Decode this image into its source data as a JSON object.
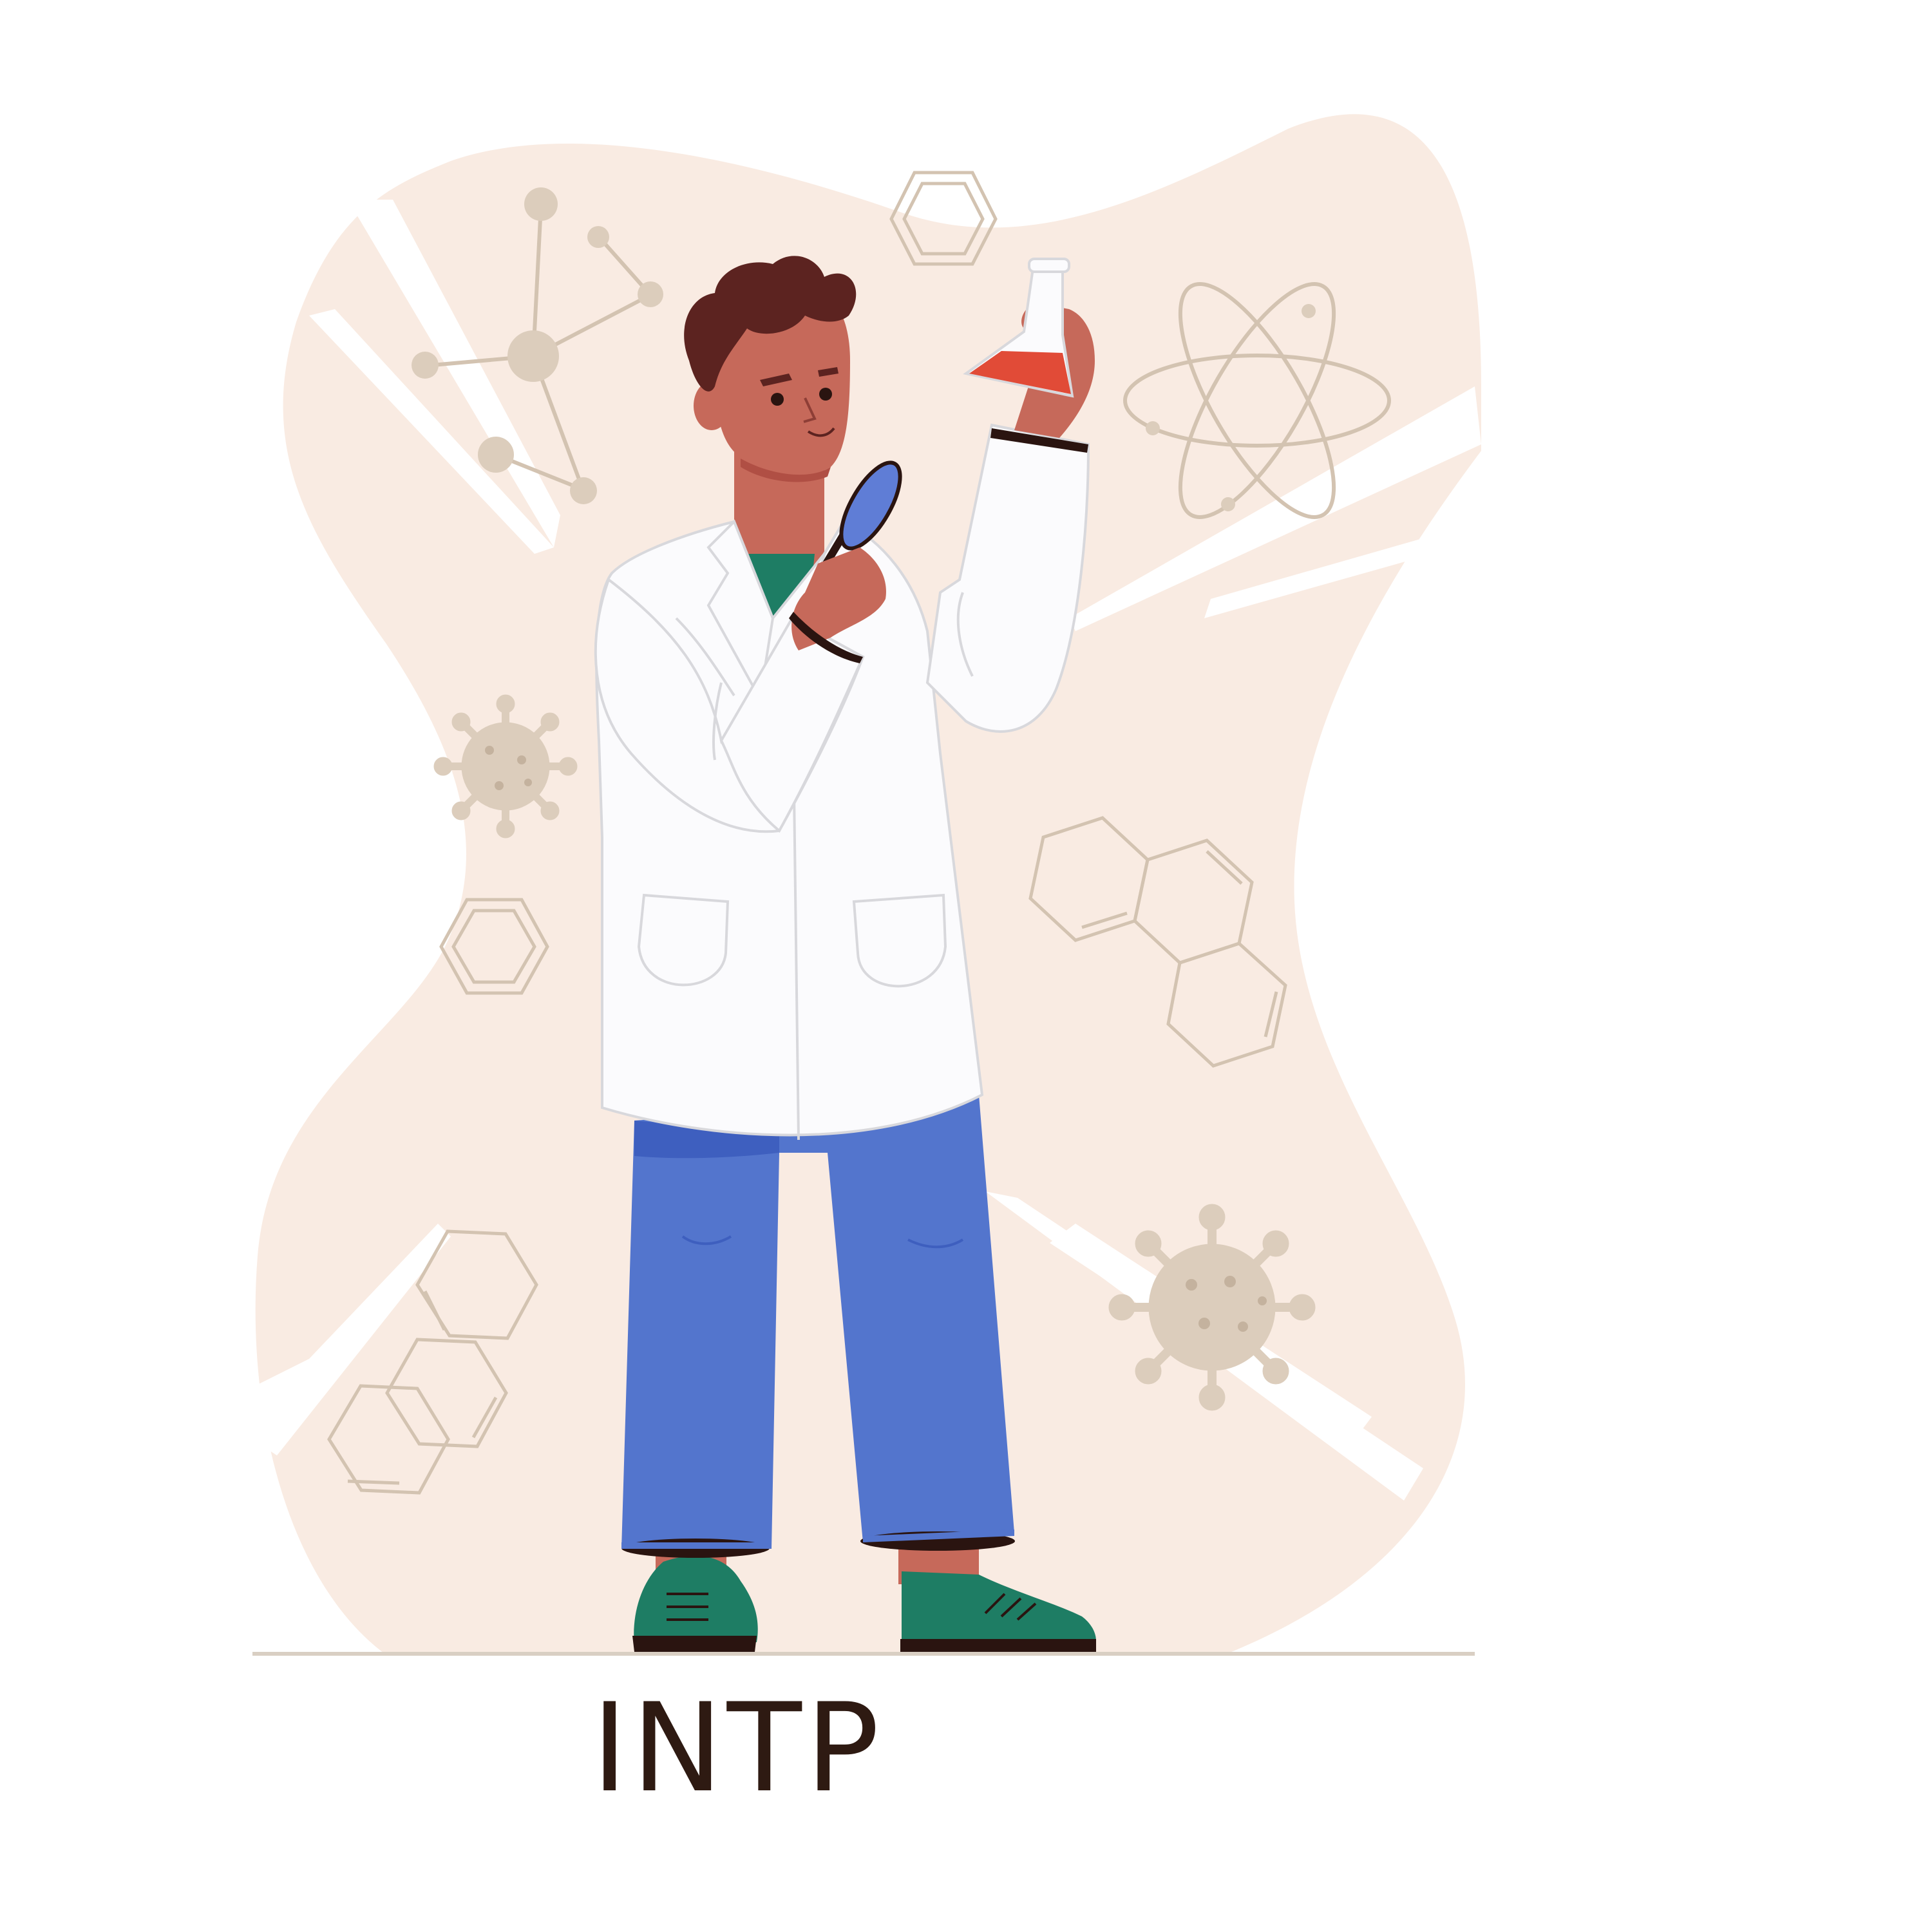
{
  "caption": {
    "label": "INTP"
  },
  "colors": {
    "background": "#ffffff",
    "blob": "#f9ebe2",
    "motif": "#dccdbc",
    "motif_stroke": "#d3c3b1",
    "skin": "#c6695a",
    "hair": "#5c2320",
    "coat": "#fbfbfd",
    "coat_line": "#d8d8dc",
    "trousers": "#5375cd",
    "trousers_shade": "#3e5fbf",
    "shirt": "#1e7d64",
    "shoes": "#1e7d64",
    "shoe_sole": "#2a1410",
    "flask_liquid": "#e14b37",
    "magnifier_glass": "#5f7dd6",
    "ground_line": "#d9cfc3",
    "caption_text": "#2e1a12"
  },
  "icons": [
    "molecule-icon",
    "atom-icon",
    "virus-icon",
    "hexagon-ring-icon",
    "fused-rings-icon",
    "magnifier-icon",
    "flask-icon"
  ]
}
